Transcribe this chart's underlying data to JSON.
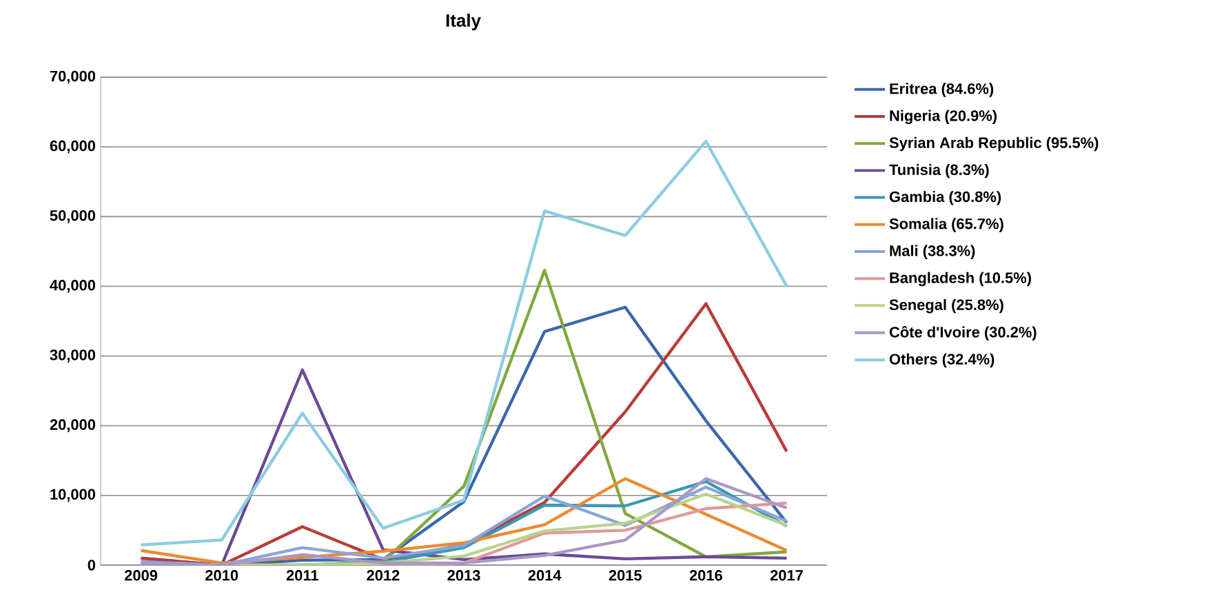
{
  "chart_data": {
    "type": "line",
    "title": "Italy",
    "categories": [
      "2009",
      "2010",
      "2011",
      "2012",
      "2013",
      "2014",
      "2015",
      "2016",
      "2017"
    ],
    "ylim": [
      0,
      70000
    ],
    "yticks": [
      {
        "value": 0,
        "label": "0"
      },
      {
        "value": 10000,
        "label": "10,000"
      },
      {
        "value": 20000,
        "label": "20,000"
      },
      {
        "value": 30000,
        "label": "30,000"
      },
      {
        "value": 40000,
        "label": "40,000"
      },
      {
        "value": 50000,
        "label": "50,000"
      },
      {
        "value": 60000,
        "label": "60,000"
      },
      {
        "value": 70000,
        "label": "70,000"
      }
    ],
    "grid": "y",
    "legend": "right",
    "marker": "none",
    "line_style": "solid",
    "series": [
      {
        "name": "Eritrea (84.6%)",
        "color": "#3a68ac",
        "values": [
          1000,
          0,
          700,
          800,
          9100,
          33500,
          37000,
          20700,
          6100
        ]
      },
      {
        "name": "Nigeria (20.9%)",
        "color": "#b73c38",
        "values": [
          1000,
          0,
          5500,
          800,
          2900,
          9000,
          22000,
          37500,
          16300
        ]
      },
      {
        "name": "Syrian Arab Republic (95.5%)",
        "color": "#80a840",
        "values": [
          0,
          0,
          0,
          500,
          11300,
          42300,
          7400,
          1200,
          1900
        ]
      },
      {
        "name": "Tunisia  (8.3%)",
        "color": "#6a4a96",
        "values": [
          500,
          0,
          28000,
          2200,
          800,
          1600,
          900,
          1200,
          1000
        ]
      },
      {
        "name": "Gambia (30.8%)",
        "color": "#3a98b4",
        "values": [
          0,
          0,
          0,
          400,
          2500,
          8600,
          8500,
          12000,
          5600
        ]
      },
      {
        "name": "Somalia (65.7%)",
        "color": "#ec8a30",
        "values": [
          2100,
          300,
          1100,
          2000,
          3200,
          5800,
          12400,
          7300,
          2100
        ]
      },
      {
        "name": "Mali (38.3%)",
        "color": "#8aa6d8",
        "values": [
          500,
          0,
          2500,
          1000,
          2800,
          9900,
          5700,
          11200,
          6300
        ]
      },
      {
        "name": "Bangladesh (10.5%)",
        "color": "#e09a98",
        "values": [
          0,
          0,
          0,
          0,
          300,
          4600,
          5000,
          8100,
          8900
        ]
      },
      {
        "name": "Senegal (25.8%)",
        "color": "#b8d48c",
        "values": [
          0,
          0,
          0,
          300,
          1300,
          4900,
          6000,
          10200,
          5700
        ]
      },
      {
        "name": "Côte d'Ivoire (30.2%)",
        "color": "#a898c8",
        "values": [
          200,
          0,
          1500,
          300,
          300,
          1400,
          3600,
          12400,
          8200
        ]
      },
      {
        "name": "Others (32.4%)",
        "color": "#8ccce0",
        "values": [
          2900,
          3600,
          21800,
          5300,
          9300,
          50800,
          47300,
          60800,
          40000
        ]
      }
    ]
  }
}
